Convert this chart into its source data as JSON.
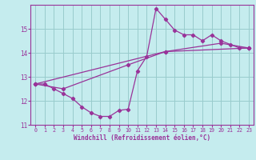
{
  "title": "",
  "xlabel": "Windchill (Refroidissement éolien,°C)",
  "ylabel": "",
  "bg_color": "#c5ecee",
  "line_color": "#993399",
  "grid_color": "#99cccc",
  "spine_color": "#993399",
  "xlim": [
    -0.5,
    23.5
  ],
  "ylim": [
    11.0,
    16.0
  ],
  "yticks": [
    11,
    12,
    13,
    14,
    15
  ],
  "xticks": [
    0,
    1,
    2,
    3,
    4,
    5,
    6,
    7,
    8,
    9,
    10,
    11,
    12,
    13,
    14,
    15,
    16,
    17,
    18,
    19,
    20,
    21,
    22,
    23
  ],
  "series1_x": [
    0,
    1,
    2,
    3,
    4,
    5,
    6,
    7,
    8,
    9,
    10,
    11,
    12,
    13,
    14,
    15,
    16,
    17,
    18,
    19,
    20,
    21,
    22,
    23
  ],
  "series1_y": [
    12.7,
    12.7,
    12.5,
    12.3,
    12.1,
    11.75,
    11.5,
    11.35,
    11.35,
    11.6,
    11.65,
    13.25,
    13.85,
    15.85,
    15.4,
    14.95,
    14.75,
    14.75,
    14.5,
    14.75,
    14.5,
    14.35,
    14.2,
    14.2
  ],
  "series2_x": [
    0,
    3,
    10,
    14,
    20,
    23
  ],
  "series2_y": [
    12.7,
    12.5,
    13.5,
    14.05,
    14.4,
    14.2
  ],
  "series3_x": [
    0,
    14,
    23
  ],
  "series3_y": [
    12.7,
    14.05,
    14.2
  ]
}
